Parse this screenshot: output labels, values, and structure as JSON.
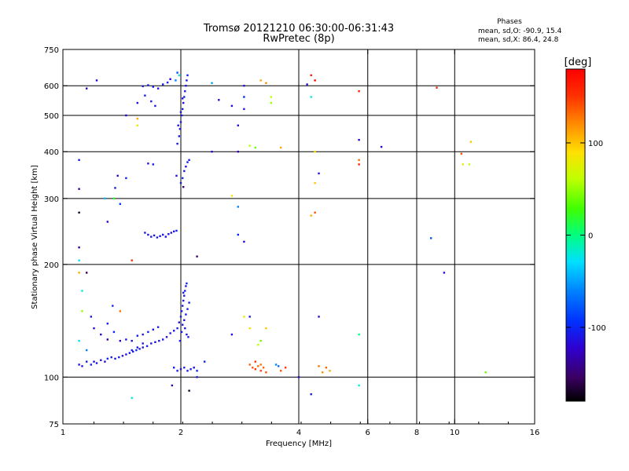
{
  "header": {
    "title_line1": "Tromsø 20121210 06:30:00-06:31:43",
    "title_line2": "RwPretec (8p)"
  },
  "stats": {
    "heading": "Phases",
    "line1": "mean, sd,O: -90.9, 15.4",
    "line2": "mean, sd,X:  86.4, 24.8"
  },
  "colorbar": {
    "label": "[deg]",
    "ticks": [
      {
        "value": 100,
        "label": "100"
      },
      {
        "value": 0,
        "label": "0"
      },
      {
        "value": -100,
        "label": "-100"
      }
    ],
    "range": [
      -180,
      180
    ]
  },
  "chart_data": {
    "type": "scatter",
    "title": "Tromsø 20121210 06:30:00-06:31:43",
    "subtitle": "RwPretec (8p)",
    "xlabel": "Frequency [MHz]",
    "ylabel": "Stationary phase Virtual Height [km]",
    "x_scale": "log",
    "y_scale": "log",
    "xlim": [
      1,
      16
    ],
    "ylim": [
      75,
      750
    ],
    "x_ticks": [
      1,
      2,
      4,
      6,
      8,
      10,
      16
    ],
    "y_ticks": [
      75,
      100,
      200,
      300,
      400,
      500,
      600,
      750
    ],
    "gridlines_x": [
      2,
      4,
      6,
      8,
      10
    ],
    "gridlines_y": [
      100,
      200,
      300,
      400,
      500,
      600
    ],
    "color_quantity": "phase [deg]",
    "points": [
      [
        1.1,
        108,
        -110
      ],
      [
        1.12,
        107,
        -115
      ],
      [
        1.15,
        110,
        -105
      ],
      [
        1.18,
        108,
        -100
      ],
      [
        1.2,
        110,
        -112
      ],
      [
        1.22,
        109,
        -108
      ],
      [
        1.25,
        111,
        -110
      ],
      [
        1.28,
        110,
        -115
      ],
      [
        1.3,
        112,
        -100
      ],
      [
        1.33,
        113,
        -105
      ],
      [
        1.36,
        112,
        -110
      ],
      [
        1.39,
        113,
        -108
      ],
      [
        1.42,
        114,
        -112
      ],
      [
        1.45,
        115,
        -115
      ],
      [
        1.48,
        116,
        -105
      ],
      [
        1.51,
        117,
        -110
      ],
      [
        1.54,
        118,
        -100
      ],
      [
        1.57,
        119,
        -108
      ],
      [
        1.6,
        120,
        -112
      ],
      [
        1.64,
        121,
        -105
      ],
      [
        1.68,
        123,
        -110
      ],
      [
        1.72,
        124,
        -115
      ],
      [
        1.76,
        125,
        -108
      ],
      [
        1.8,
        126,
        -110
      ],
      [
        1.84,
        128,
        -112
      ],
      [
        1.88,
        131,
        -108
      ],
      [
        1.92,
        133,
        -110
      ],
      [
        1.96,
        135,
        -105
      ],
      [
        1.45,
        126,
        -110
      ],
      [
        1.5,
        125,
        -115
      ],
      [
        1.55,
        129,
        -108
      ],
      [
        1.6,
        130,
        -110
      ],
      [
        1.65,
        132,
        -105
      ],
      [
        1.7,
        134,
        -112
      ],
      [
        1.75,
        136,
        -108
      ],
      [
        1.5,
        118,
        -100
      ],
      [
        1.55,
        120,
        -110
      ],
      [
        1.6,
        123,
        -108
      ],
      [
        1.3,
        126,
        -140
      ],
      [
        1.25,
        130,
        -120
      ],
      [
        1.35,
        132,
        -100
      ],
      [
        1.4,
        125,
        -130
      ],
      [
        1.15,
        118,
        -60
      ],
      [
        1.2,
        135,
        -115
      ],
      [
        1.1,
        125,
        -30
      ],
      [
        1.92,
        106,
        -110
      ],
      [
        1.96,
        104,
        -108
      ],
      [
        2.0,
        105,
        -112
      ],
      [
        2.04,
        106,
        -105
      ],
      [
        2.08,
        104,
        -110
      ],
      [
        2.12,
        105,
        -108
      ],
      [
        2.16,
        106,
        -115
      ],
      [
        2.2,
        104,
        -100
      ],
      [
        1.9,
        95,
        -140
      ],
      [
        2.1,
        92,
        -170
      ],
      [
        1.98,
        140,
        -110
      ],
      [
        2.0,
        145,
        -105
      ],
      [
        2.01,
        150,
        -112
      ],
      [
        2.02,
        155,
        -108
      ],
      [
        2.03,
        160,
        -110
      ],
      [
        2.04,
        165,
        -115
      ],
      [
        2.05,
        170,
        -105
      ],
      [
        2.06,
        175,
        -110
      ],
      [
        2.07,
        178,
        -100
      ],
      [
        2.02,
        138,
        -108
      ],
      [
        2.04,
        142,
        -112
      ],
      [
        2.06,
        147,
        -105
      ],
      [
        2.08,
        152,
        -110
      ],
      [
        2.1,
        158,
        -108
      ],
      [
        2.05,
        135,
        -110
      ],
      [
        2.07,
        130,
        -115
      ],
      [
        2.09,
        128,
        -105
      ],
      [
        2.01,
        132,
        -108
      ],
      [
        1.99,
        125,
        -110
      ],
      [
        2.03,
        168,
        -112
      ],
      [
        2.0,
        330,
        -110
      ],
      [
        2.02,
        340,
        -100
      ],
      [
        2.04,
        355,
        -108
      ],
      [
        2.06,
        365,
        -112
      ],
      [
        2.08,
        375,
        -105
      ],
      [
        2.1,
        380,
        -110
      ],
      [
        2.03,
        322,
        -150
      ],
      [
        1.95,
        345,
        -115
      ],
      [
        1.96,
        420,
        -110
      ],
      [
        1.98,
        440,
        -108
      ],
      [
        1.99,
        460,
        -112
      ],
      [
        2.0,
        480,
        -105
      ],
      [
        2.01,
        500,
        -110
      ],
      [
        2.02,
        520,
        -108
      ],
      [
        2.03,
        540,
        -115
      ],
      [
        2.04,
        560,
        -100
      ],
      [
        2.05,
        580,
        -110
      ],
      [
        2.06,
        600,
        -108
      ],
      [
        2.07,
        620,
        -112
      ],
      [
        2.08,
        640,
        -105
      ],
      [
        1.97,
        470,
        -110
      ],
      [
        2.0,
        510,
        -108
      ],
      [
        2.02,
        555,
        -112
      ],
      [
        1.94,
        620,
        -60
      ],
      [
        1.96,
        650,
        -80
      ],
      [
        1.98,
        640,
        -20
      ],
      [
        1.65,
        240,
        -110
      ],
      [
        1.68,
        237,
        -108
      ],
      [
        1.71,
        239,
        -112
      ],
      [
        1.74,
        236,
        -105
      ],
      [
        1.77,
        238,
        -110
      ],
      [
        1.8,
        240,
        -108
      ],
      [
        1.83,
        237,
        -115
      ],
      [
        1.86,
        241,
        -110
      ],
      [
        1.89,
        243,
        -112
      ],
      [
        1.92,
        245,
        -108
      ],
      [
        1.95,
        246,
        -105
      ],
      [
        1.62,
        243,
        -110
      ],
      [
        1.6,
        598,
        -110
      ],
      [
        1.65,
        602,
        -108
      ],
      [
        1.7,
        596,
        -105
      ],
      [
        1.75,
        590,
        -112
      ],
      [
        1.8,
        605,
        -110
      ],
      [
        1.85,
        612,
        -108
      ],
      [
        1.88,
        625,
        -115
      ],
      [
        1.62,
        565,
        -105
      ],
      [
        1.68,
        545,
        -110
      ],
      [
        1.72,
        530,
        -108
      ],
      [
        1.55,
        540,
        -112
      ],
      [
        1.65,
        372,
        -110
      ],
      [
        1.7,
        370,
        -108
      ],
      [
        1.22,
        620,
        -120
      ],
      [
        1.15,
        590,
        -130
      ],
      [
        1.45,
        500,
        -120
      ],
      [
        3.0,
        108,
        135
      ],
      [
        3.05,
        106,
        140
      ],
      [
        3.1,
        105,
        150
      ],
      [
        3.15,
        107,
        130
      ],
      [
        3.2,
        104,
        145
      ],
      [
        3.25,
        106,
        135
      ],
      [
        3.3,
        103,
        140
      ],
      [
        3.1,
        110,
        150
      ],
      [
        3.2,
        108,
        130
      ],
      [
        3.6,
        104,
        140
      ],
      [
        3.7,
        106,
        150
      ],
      [
        4.6,
        103,
        120
      ],
      [
        4.7,
        106,
        135
      ],
      [
        4.8,
        104,
        110
      ],
      [
        4.5,
        107,
        130
      ],
      [
        3.5,
        108,
        -60
      ],
      [
        3.55,
        107,
        -70
      ],
      [
        4.3,
        90,
        -110
      ],
      [
        4.0,
        100,
        -120
      ],
      [
        5.7,
        95,
        -20
      ],
      [
        3.2,
        125,
        40
      ],
      [
        3.15,
        122,
        60
      ],
      [
        2.7,
        130,
        -120
      ],
      [
        3.0,
        145,
        -110
      ],
      [
        4.5,
        145,
        -120
      ],
      [
        2.9,
        145,
        80
      ],
      [
        3.0,
        135,
        90
      ],
      [
        3.3,
        135,
        100
      ],
      [
        3.1,
        410,
        40
      ],
      [
        3.0,
        415,
        60
      ],
      [
        3.4,
        540,
        50
      ],
      [
        3.4,
        560,
        60
      ],
      [
        3.2,
        620,
        110
      ],
      [
        3.3,
        610,
        120
      ],
      [
        3.6,
        410,
        110
      ],
      [
        4.3,
        640,
        170
      ],
      [
        4.4,
        620,
        180
      ],
      [
        4.3,
        560,
        -20
      ],
      [
        4.2,
        605,
        -120
      ],
      [
        4.4,
        400,
        90
      ],
      [
        4.4,
        330,
        100
      ],
      [
        4.5,
        350,
        -110
      ],
      [
        4.4,
        275,
        140
      ],
      [
        4.3,
        270,
        110
      ],
      [
        5.7,
        370,
        160
      ],
      [
        5.7,
        380,
        130
      ],
      [
        5.7,
        430,
        -120
      ],
      [
        5.7,
        130,
        0
      ],
      [
        6.5,
        412,
        -120
      ],
      [
        8.7,
        235,
        -80
      ],
      [
        9.4,
        190,
        -120
      ],
      [
        9.0,
        593,
        160
      ],
      [
        10.4,
        395,
        140
      ],
      [
        10.5,
        370,
        80
      ],
      [
        10.9,
        370,
        60
      ],
      [
        11.0,
        425,
        100
      ],
      [
        12.0,
        103,
        40
      ],
      [
        5.7,
        580,
        160
      ],
      [
        2.8,
        240,
        -100
      ],
      [
        2.9,
        230,
        -120
      ],
      [
        2.8,
        285,
        -60
      ],
      [
        2.7,
        305,
        90
      ],
      [
        2.9,
        600,
        -110
      ],
      [
        2.9,
        560,
        -100
      ],
      [
        2.8,
        470,
        -110
      ],
      [
        2.8,
        400,
        -130
      ],
      [
        2.7,
        530,
        -120
      ],
      [
        2.9,
        520,
        -110
      ],
      [
        2.5,
        550,
        -120
      ],
      [
        2.4,
        610,
        -50
      ],
      [
        2.4,
        400,
        -120
      ],
      [
        2.2,
        210,
        -150
      ],
      [
        1.28,
        300,
        -40
      ],
      [
        1.35,
        300,
        20
      ],
      [
        1.4,
        290,
        -90
      ],
      [
        1.36,
        320,
        -110
      ],
      [
        1.38,
        345,
        -120
      ],
      [
        1.45,
        340,
        -100
      ],
      [
        1.3,
        260,
        -130
      ],
      [
        1.1,
        380,
        -110
      ],
      [
        1.1,
        318,
        -140
      ],
      [
        1.1,
        275,
        -170
      ],
      [
        1.1,
        222,
        -140
      ],
      [
        1.1,
        205,
        -30
      ],
      [
        1.1,
        190,
        110
      ],
      [
        1.15,
        190,
        -160
      ],
      [
        1.12,
        170,
        -20
      ],
      [
        1.12,
        150,
        50
      ],
      [
        1.4,
        150,
        130
      ],
      [
        1.5,
        205,
        150
      ],
      [
        1.55,
        490,
        110
      ],
      [
        1.55,
        470,
        80
      ],
      [
        1.5,
        88,
        -20
      ],
      [
        2.2,
        100,
        -110
      ],
      [
        2.3,
        110,
        -100
      ],
      [
        1.18,
        145,
        -110
      ],
      [
        1.3,
        139,
        -105
      ],
      [
        1.34,
        155,
        -100
      ]
    ]
  }
}
